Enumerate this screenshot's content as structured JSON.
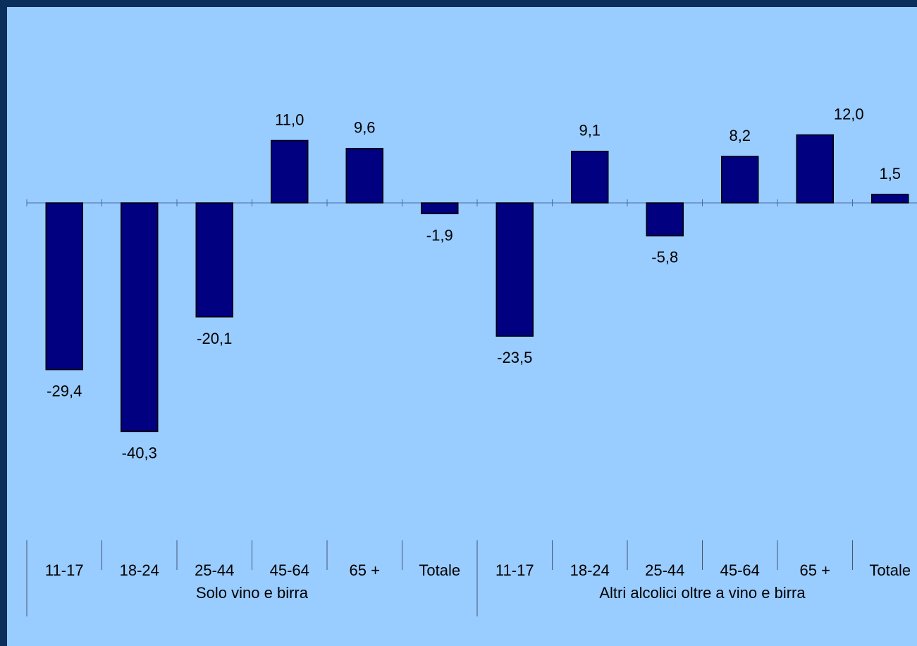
{
  "chart_data": {
    "type": "bar",
    "groups": [
      {
        "name": "Solo vino e birra",
        "categories": [
          "11-17",
          "18-24",
          "25-44",
          "45-64",
          "65 +",
          "Totale"
        ],
        "values": [
          -29.4,
          -40.3,
          -20.1,
          11.0,
          9.6,
          -1.9
        ],
        "value_labels": [
          "-29,4",
          "-40,3",
          "-20,1",
          "11,0",
          "9,6",
          "-1,9"
        ]
      },
      {
        "name": "Altri alcolici oltre a vino e birra",
        "categories": [
          "11-17",
          "18-24",
          "25-44",
          "45-64",
          "65 +",
          "Totale"
        ],
        "values": [
          -23.5,
          9.1,
          -5.8,
          8.2,
          12.0,
          1.5
        ],
        "value_labels": [
          "-23,5",
          "9,1",
          "-5,8",
          "8,2",
          "12,0",
          "1,5"
        ]
      }
    ],
    "colors": {
      "bar": "#000080",
      "bar_edge": "#000000",
      "background": "#99ccff",
      "frame": "#0b2f5c"
    },
    "grid": false,
    "legend": "none"
  }
}
